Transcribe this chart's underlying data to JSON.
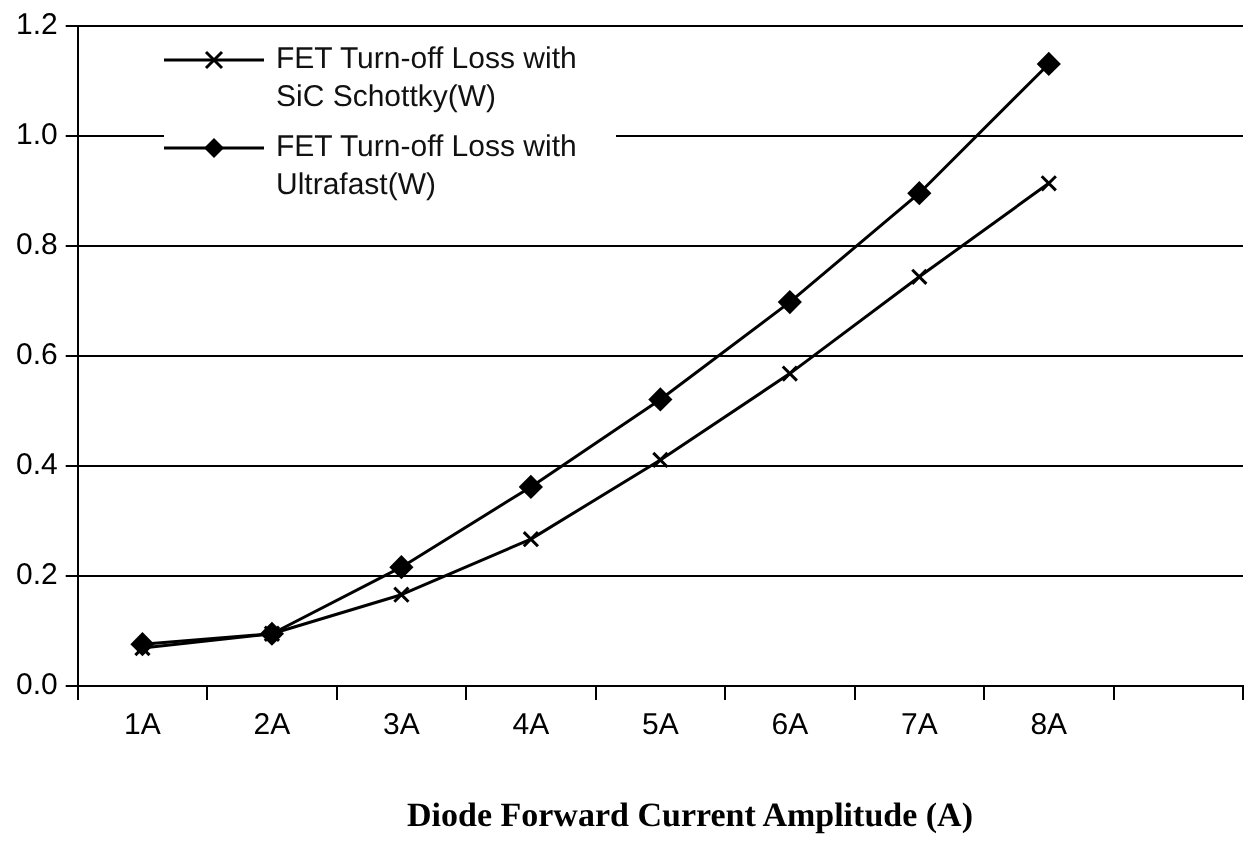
{
  "chart_data": {
    "type": "line",
    "xlabel": "Diode Forward Current Amplitude (A)",
    "categories": [
      "1A",
      "2A",
      "3A",
      "4A",
      "5A",
      "6A",
      "7A",
      "8A",
      null
    ],
    "series": [
      {
        "name": "FET Turn-off Loss with SiC Schottky(W)",
        "color": "#000000",
        "marker": "cross",
        "values": [
          0.069,
          0.095,
          0.166,
          0.267,
          0.411,
          0.568,
          0.744,
          0.914,
          null
        ]
      },
      {
        "name": "FET Turn-off Loss with Ultrafast(W)",
        "color": "#000000",
        "marker": "diamond",
        "values": [
          0.076,
          0.095,
          0.216,
          0.362,
          0.521,
          0.698,
          0.896,
          1.131,
          null
        ]
      }
    ],
    "ylim": [
      0,
      1.2
    ],
    "yticks": [
      {
        "value": 0,
        "label": "0.0"
      },
      0.2,
      0.4,
      0.6,
      0.8,
      {
        "value": 1,
        "label": "1.0"
      },
      1.2
    ],
    "grid": "y",
    "legend": "top left",
    "line_style": "solid"
  }
}
